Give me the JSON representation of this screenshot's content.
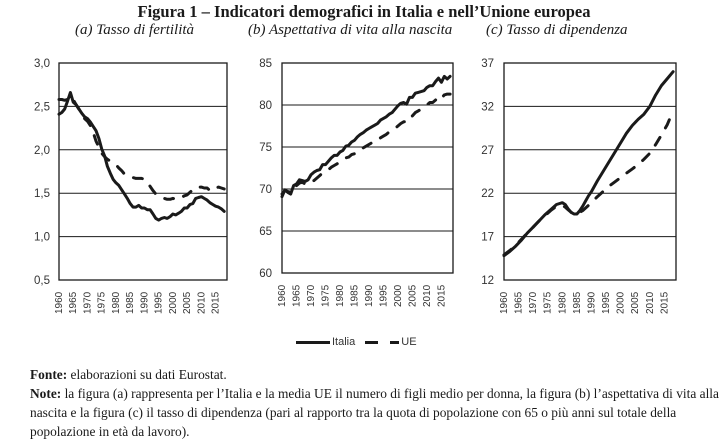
{
  "figure": {
    "title": "Figura 1 – Indicatori demografici in Italia e nell’Unione europea",
    "legend": [
      {
        "label": "Italia",
        "style": "solid"
      },
      {
        "label": "UE",
        "style": "dashed"
      }
    ],
    "source_label": "Fonte:",
    "source_text": " elaborazioni su dati Eurostat.",
    "note_label": "Note:",
    "note_text": " la figura (a) rappresenta per l’Italia e la media UE il numero di figli medio per donna, la figura (b) l’aspettativa di vita alla nascita e la figura (c) il tasso di dipendenza (pari al rapporto tra la quota di popolazione con 65 o più anni sul totale della popolazione in età da lavoro)."
  },
  "chart_data": [
    {
      "type": "line",
      "title": "(a) Tasso di fertilità",
      "xlabel": "",
      "ylabel": "",
      "xlim": [
        1960,
        2019
      ],
      "ylim": [
        0.5,
        3.0
      ],
      "yticks": [
        0.5,
        1.0,
        1.5,
        2.0,
        2.5,
        3.0
      ],
      "ytick_labels": [
        "0,5",
        "1,0",
        "1,5",
        "2,0",
        "2,5",
        "3,0"
      ],
      "xticks": [
        1960,
        1965,
        1970,
        1975,
        1980,
        1985,
        1990,
        1995,
        2000,
        2005,
        2010,
        2015
      ],
      "grid": true,
      "series": [
        {
          "name": "Italia",
          "style": "solid",
          "x": [
            1960,
            1961,
            1962,
            1963,
            1964,
            1965,
            1966,
            1967,
            1968,
            1969,
            1970,
            1971,
            1972,
            1973,
            1974,
            1975,
            1976,
            1977,
            1978,
            1979,
            1980,
            1981,
            1982,
            1983,
            1984,
            1985,
            1986,
            1987,
            1988,
            1989,
            1990,
            1991,
            1992,
            1993,
            1994,
            1995,
            1996,
            1997,
            1998,
            1999,
            2000,
            2001,
            2002,
            2003,
            2004,
            2005,
            2006,
            2007,
            2008,
            2009,
            2010,
            2011,
            2012,
            2013,
            2014,
            2015,
            2016,
            2017,
            2018
          ],
          "y": [
            2.41,
            2.43,
            2.47,
            2.56,
            2.66,
            2.55,
            2.52,
            2.47,
            2.42,
            2.38,
            2.36,
            2.32,
            2.27,
            2.22,
            2.13,
            2.01,
            1.93,
            1.81,
            1.73,
            1.66,
            1.62,
            1.59,
            1.54,
            1.49,
            1.44,
            1.38,
            1.34,
            1.34,
            1.36,
            1.33,
            1.33,
            1.31,
            1.31,
            1.26,
            1.21,
            1.19,
            1.21,
            1.22,
            1.21,
            1.23,
            1.26,
            1.25,
            1.27,
            1.29,
            1.33,
            1.33,
            1.37,
            1.38,
            1.44,
            1.45,
            1.46,
            1.44,
            1.42,
            1.39,
            1.37,
            1.35,
            1.34,
            1.32,
            1.29
          ]
        },
        {
          "name": "UE",
          "style": "dashed",
          "x": [
            1960,
            1961,
            1962,
            1963,
            1964,
            1965,
            1966,
            1967,
            1968,
            1969,
            1970,
            1971,
            1972,
            1973,
            1974,
            1975,
            1976,
            1977,
            1978,
            1979,
            1980,
            1981,
            1982,
            1983,
            1984,
            1985,
            1986,
            1987,
            1988,
            1989,
            1990,
            1991,
            1992,
            1993,
            1994,
            1995,
            1996,
            1997,
            1998,
            1999,
            2000,
            2001,
            2002,
            2003,
            2004,
            2005,
            2006,
            2007,
            2008,
            2009,
            2010,
            2011,
            2012,
            2013,
            2014,
            2015,
            2016,
            2017,
            2018
          ],
          "y": [
            2.58,
            2.58,
            2.57,
            2.58,
            2.62,
            2.58,
            2.52,
            2.47,
            2.42,
            2.36,
            2.33,
            2.28,
            2.2,
            2.1,
            2.03,
            1.96,
            1.92,
            1.89,
            1.87,
            1.85,
            1.83,
            1.79,
            1.76,
            1.72,
            1.7,
            1.69,
            1.68,
            1.67,
            1.67,
            1.67,
            1.66,
            1.63,
            1.58,
            1.53,
            1.49,
            1.47,
            1.45,
            1.44,
            1.43,
            1.43,
            1.44,
            1.43,
            1.43,
            1.45,
            1.47,
            1.48,
            1.51,
            1.54,
            1.57,
            1.57,
            1.57,
            1.56,
            1.56,
            1.53,
            1.56,
            1.56,
            1.57,
            1.56,
            1.55
          ]
        }
      ]
    },
    {
      "type": "line",
      "title": "(b) Aspettativa di vita alla nascita",
      "xlabel": "",
      "ylabel": "",
      "xlim": [
        1960,
        2019
      ],
      "ylim": [
        60,
        85
      ],
      "yticks": [
        60,
        65,
        70,
        75,
        80,
        85
      ],
      "ytick_labels": [
        "60",
        "65",
        "70",
        "75",
        "80",
        "85"
      ],
      "xticks": [
        1960,
        1965,
        1970,
        1975,
        1980,
        1985,
        1990,
        1995,
        2000,
        2005,
        2010,
        2015
      ],
      "grid": true,
      "series": [
        {
          "name": "Italia",
          "style": "solid",
          "x": [
            1960,
            1961,
            1962,
            1963,
            1964,
            1965,
            1966,
            1967,
            1968,
            1969,
            1970,
            1971,
            1972,
            1973,
            1974,
            1975,
            1976,
            1977,
            1978,
            1979,
            1980,
            1981,
            1982,
            1983,
            1984,
            1985,
            1986,
            1987,
            1988,
            1989,
            1990,
            1991,
            1992,
            1993,
            1994,
            1995,
            1996,
            1997,
            1998,
            1999,
            2000,
            2001,
            2002,
            2003,
            2004,
            2005,
            2006,
            2007,
            2008,
            2009,
            2010,
            2011,
            2012,
            2013,
            2014,
            2015,
            2016,
            2017,
            2018
          ],
          "y": [
            69.1,
            69.9,
            69.6,
            69.4,
            70.4,
            70.6,
            71.1,
            71.0,
            70.9,
            71.1,
            71.7,
            72.0,
            72.2,
            72.3,
            72.9,
            72.9,
            73.3,
            73.7,
            74.0,
            74.0,
            74.4,
            74.6,
            75.1,
            75.2,
            75.6,
            75.8,
            76.2,
            76.5,
            76.7,
            77.0,
            77.2,
            77.4,
            77.6,
            77.8,
            78.2,
            78.4,
            78.6,
            78.9,
            79.1,
            79.5,
            79.9,
            80.2,
            80.3,
            80.1,
            80.9,
            80.9,
            81.4,
            81.5,
            81.6,
            81.7,
            82.1,
            82.3,
            82.3,
            82.8,
            83.2,
            82.7,
            83.4,
            83.1,
            83.4
          ]
        },
        {
          "name": "UE",
          "style": "dashed",
          "x": [
            1960,
            1961,
            1962,
            1963,
            1964,
            1965,
            1966,
            1967,
            1968,
            1969,
            1970,
            1971,
            1972,
            1973,
            1974,
            1975,
            1976,
            1977,
            1978,
            1979,
            1980,
            1981,
            1982,
            1983,
            1984,
            1985,
            1986,
            1987,
            1988,
            1989,
            1990,
            1991,
            1992,
            1993,
            1994,
            1995,
            1996,
            1997,
            1998,
            1999,
            2000,
            2001,
            2002,
            2003,
            2004,
            2005,
            2006,
            2007,
            2008,
            2009,
            2010,
            2011,
            2012,
            2013,
            2014,
            2015,
            2016,
            2017,
            2018
          ],
          "y": [
            69.4,
            69.8,
            69.7,
            69.6,
            70.3,
            70.4,
            70.7,
            70.8,
            70.6,
            70.6,
            70.9,
            71.0,
            71.3,
            71.6,
            71.9,
            72.1,
            72.3,
            72.6,
            72.8,
            73.0,
            73.2,
            73.4,
            73.7,
            73.8,
            74.1,
            74.2,
            74.5,
            74.8,
            74.9,
            75.1,
            75.3,
            75.5,
            75.7,
            75.8,
            76.1,
            76.3,
            76.5,
            76.8,
            77.0,
            77.2,
            77.5,
            77.8,
            78.0,
            78.0,
            78.6,
            78.7,
            79.1,
            79.3,
            79.5,
            79.8,
            80.0,
            80.3,
            80.3,
            80.6,
            81.0,
            80.8,
            81.2,
            81.3,
            81.3
          ]
        }
      ]
    },
    {
      "type": "line",
      "title": "(c) Tasso di dipendenza",
      "xlabel": "",
      "ylabel": "",
      "xlim": [
        1960,
        2019
      ],
      "ylim": [
        12,
        37
      ],
      "yticks": [
        12,
        17,
        22,
        27,
        32,
        37
      ],
      "ytick_labels": [
        "12",
        "17",
        "22",
        "27",
        "32",
        "37"
      ],
      "xticks": [
        1960,
        1965,
        1970,
        1975,
        1980,
        1985,
        1990,
        1995,
        2000,
        2005,
        2010,
        2015
      ],
      "grid": true,
      "series": [
        {
          "name": "Italia",
          "style": "solid",
          "x": [
            1960,
            1962,
            1964,
            1966,
            1968,
            1970,
            1972,
            1974,
            1976,
            1978,
            1980,
            1981,
            1982,
            1983,
            1984,
            1985,
            1986,
            1987,
            1988,
            1989,
            1990,
            1992,
            1994,
            1996,
            1998,
            2000,
            2002,
            2004,
            2006,
            2008,
            2010,
            2012,
            2014,
            2016,
            2018
          ],
          "y": [
            14.8,
            15.3,
            15.9,
            16.6,
            17.4,
            18.1,
            18.8,
            19.5,
            20.1,
            20.7,
            20.9,
            20.7,
            20.2,
            19.8,
            19.6,
            19.6,
            20.0,
            20.5,
            21.1,
            21.7,
            22.2,
            23.4,
            24.5,
            25.6,
            26.7,
            27.8,
            28.9,
            29.8,
            30.5,
            31.1,
            32.0,
            33.3,
            34.4,
            35.2,
            36.0
          ]
        },
        {
          "name": "UE",
          "style": "dashed",
          "x": [
            1960,
            1962,
            1964,
            1966,
            1968,
            1970,
            1972,
            1974,
            1976,
            1978,
            1980,
            1981,
            1982,
            1983,
            1984,
            1985,
            1986,
            1987,
            1988,
            1989,
            1990,
            1992,
            1994,
            1996,
            1998,
            2000,
            2002,
            2004,
            2006,
            2008,
            2010,
            2012,
            2014,
            2016,
            2018
          ],
          "y": [
            14.9,
            15.4,
            16.0,
            16.7,
            17.4,
            18.1,
            18.8,
            19.4,
            20.0,
            20.5,
            20.6,
            20.4,
            20.1,
            19.8,
            19.6,
            19.6,
            19.8,
            20.0,
            20.3,
            20.6,
            20.9,
            21.6,
            22.2,
            22.8,
            23.3,
            23.8,
            24.3,
            24.8,
            25.3,
            25.9,
            26.6,
            27.6,
            28.7,
            29.9,
            31.5
          ]
        }
      ]
    }
  ]
}
